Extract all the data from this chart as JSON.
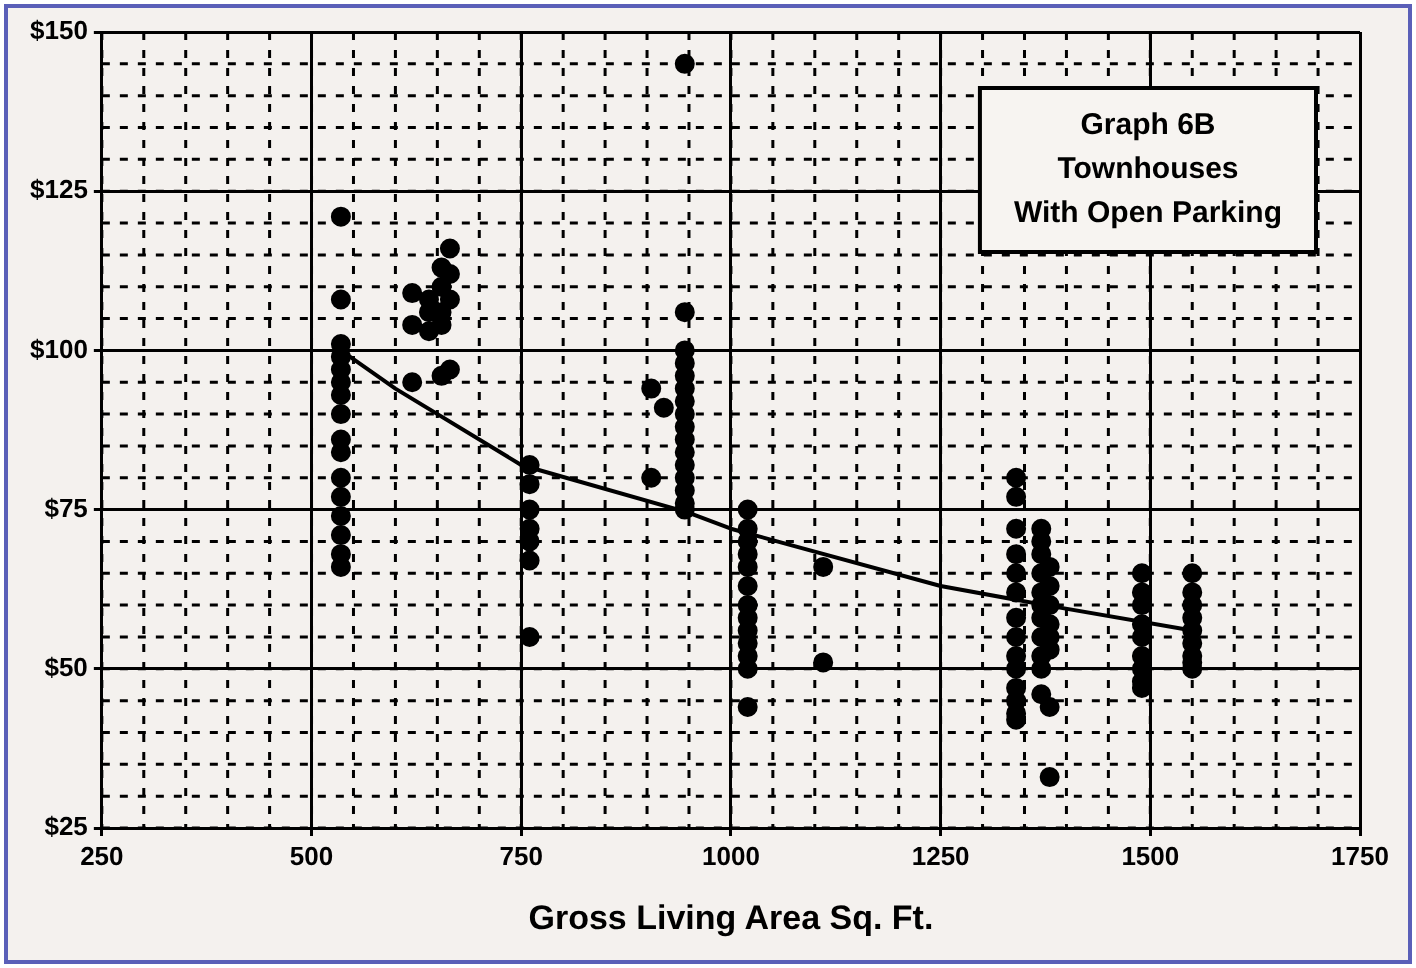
{
  "chart_data": {
    "type": "scatter",
    "title": "Graph 6B\nTownhouses\nWith Open Parking",
    "xlabel": "Gross Living Area Sq. Ft.",
    "xlim": [
      250,
      1750
    ],
    "xticks": [
      250,
      500,
      750,
      1000,
      1250,
      1500,
      1750
    ],
    "ylim": [
      25,
      150
    ],
    "yticks": [
      {
        "value": 25,
        "label": "$25"
      },
      {
        "value": 50,
        "label": "$50"
      },
      {
        "value": 75,
        "label": "$75"
      },
      {
        "value": 100,
        "label": "$100"
      },
      {
        "value": 125,
        "label": "$125"
      },
      {
        "value": 150,
        "label": "$150"
      }
    ],
    "grid": true,
    "legend": false,
    "marker": "circle",
    "series": [
      {
        "type": "scatter",
        "color": "#000000",
        "x": [
          535,
          535,
          535,
          535,
          535,
          535,
          535,
          535,
          535,
          535,
          535,
          535,
          535,
          535,
          535,
          535,
          620,
          620,
          620,
          640,
          640,
          640,
          655,
          655,
          655,
          655,
          655,
          665,
          665,
          665,
          665,
          760,
          760,
          760,
          760,
          760,
          760,
          760,
          905,
          905,
          920,
          945,
          945,
          945,
          945,
          945,
          945,
          945,
          945,
          945,
          945,
          945,
          945,
          945,
          945,
          945,
          945,
          1020,
          1020,
          1020,
          1020,
          1020,
          1020,
          1020,
          1020,
          1020,
          1020,
          1020,
          1020,
          1020,
          1110,
          1110,
          1340,
          1340,
          1340,
          1340,
          1340,
          1340,
          1340,
          1340,
          1340,
          1340,
          1340,
          1340,
          1340,
          1340,
          1370,
          1370,
          1370,
          1370,
          1370,
          1370,
          1370,
          1370,
          1370,
          1370,
          1370,
          1380,
          1380,
          1380,
          1380,
          1380,
          1380,
          1380,
          1380,
          1490,
          1490,
          1490,
          1490,
          1490,
          1490,
          1490,
          1490,
          1490,
          1550,
          1550,
          1550,
          1550,
          1550,
          1550,
          1550,
          1550,
          1550
        ],
        "values": [
          121,
          108,
          101,
          99,
          97,
          95,
          93,
          90,
          86,
          84,
          80,
          77,
          74,
          71,
          68,
          66,
          109,
          104,
          95,
          108,
          106,
          103,
          113,
          110,
          106,
          104,
          96,
          116,
          112,
          108,
          97,
          82,
          79,
          75,
          72,
          70,
          67,
          55,
          94,
          80,
          91,
          145,
          106,
          100,
          98,
          96,
          94,
          92,
          90,
          88,
          86,
          84,
          82,
          80,
          78,
          76,
          75,
          75,
          72,
          70,
          68,
          66,
          63,
          60,
          58,
          56,
          54,
          52,
          50,
          44,
          66,
          51,
          80,
          77,
          72,
          68,
          65,
          62,
          58,
          55,
          52,
          50,
          47,
          45,
          43,
          42,
          72,
          70,
          68,
          65,
          62,
          60,
          58,
          55,
          52,
          50,
          46,
          66,
          63,
          60,
          57,
          55,
          53,
          44,
          33,
          65,
          62,
          60,
          57,
          55,
          52,
          50,
          48,
          47,
          65,
          62,
          60,
          58,
          56,
          54,
          52,
          51,
          50
        ]
      },
      {
        "type": "line",
        "color": "#000000",
        "marker": "none",
        "x": [
          535,
          600,
          750,
          950,
          1000,
          1250,
          1375,
          1550
        ],
        "values": [
          100,
          94,
          82,
          74.5,
          72,
          63,
          60,
          56
        ]
      }
    ]
  }
}
